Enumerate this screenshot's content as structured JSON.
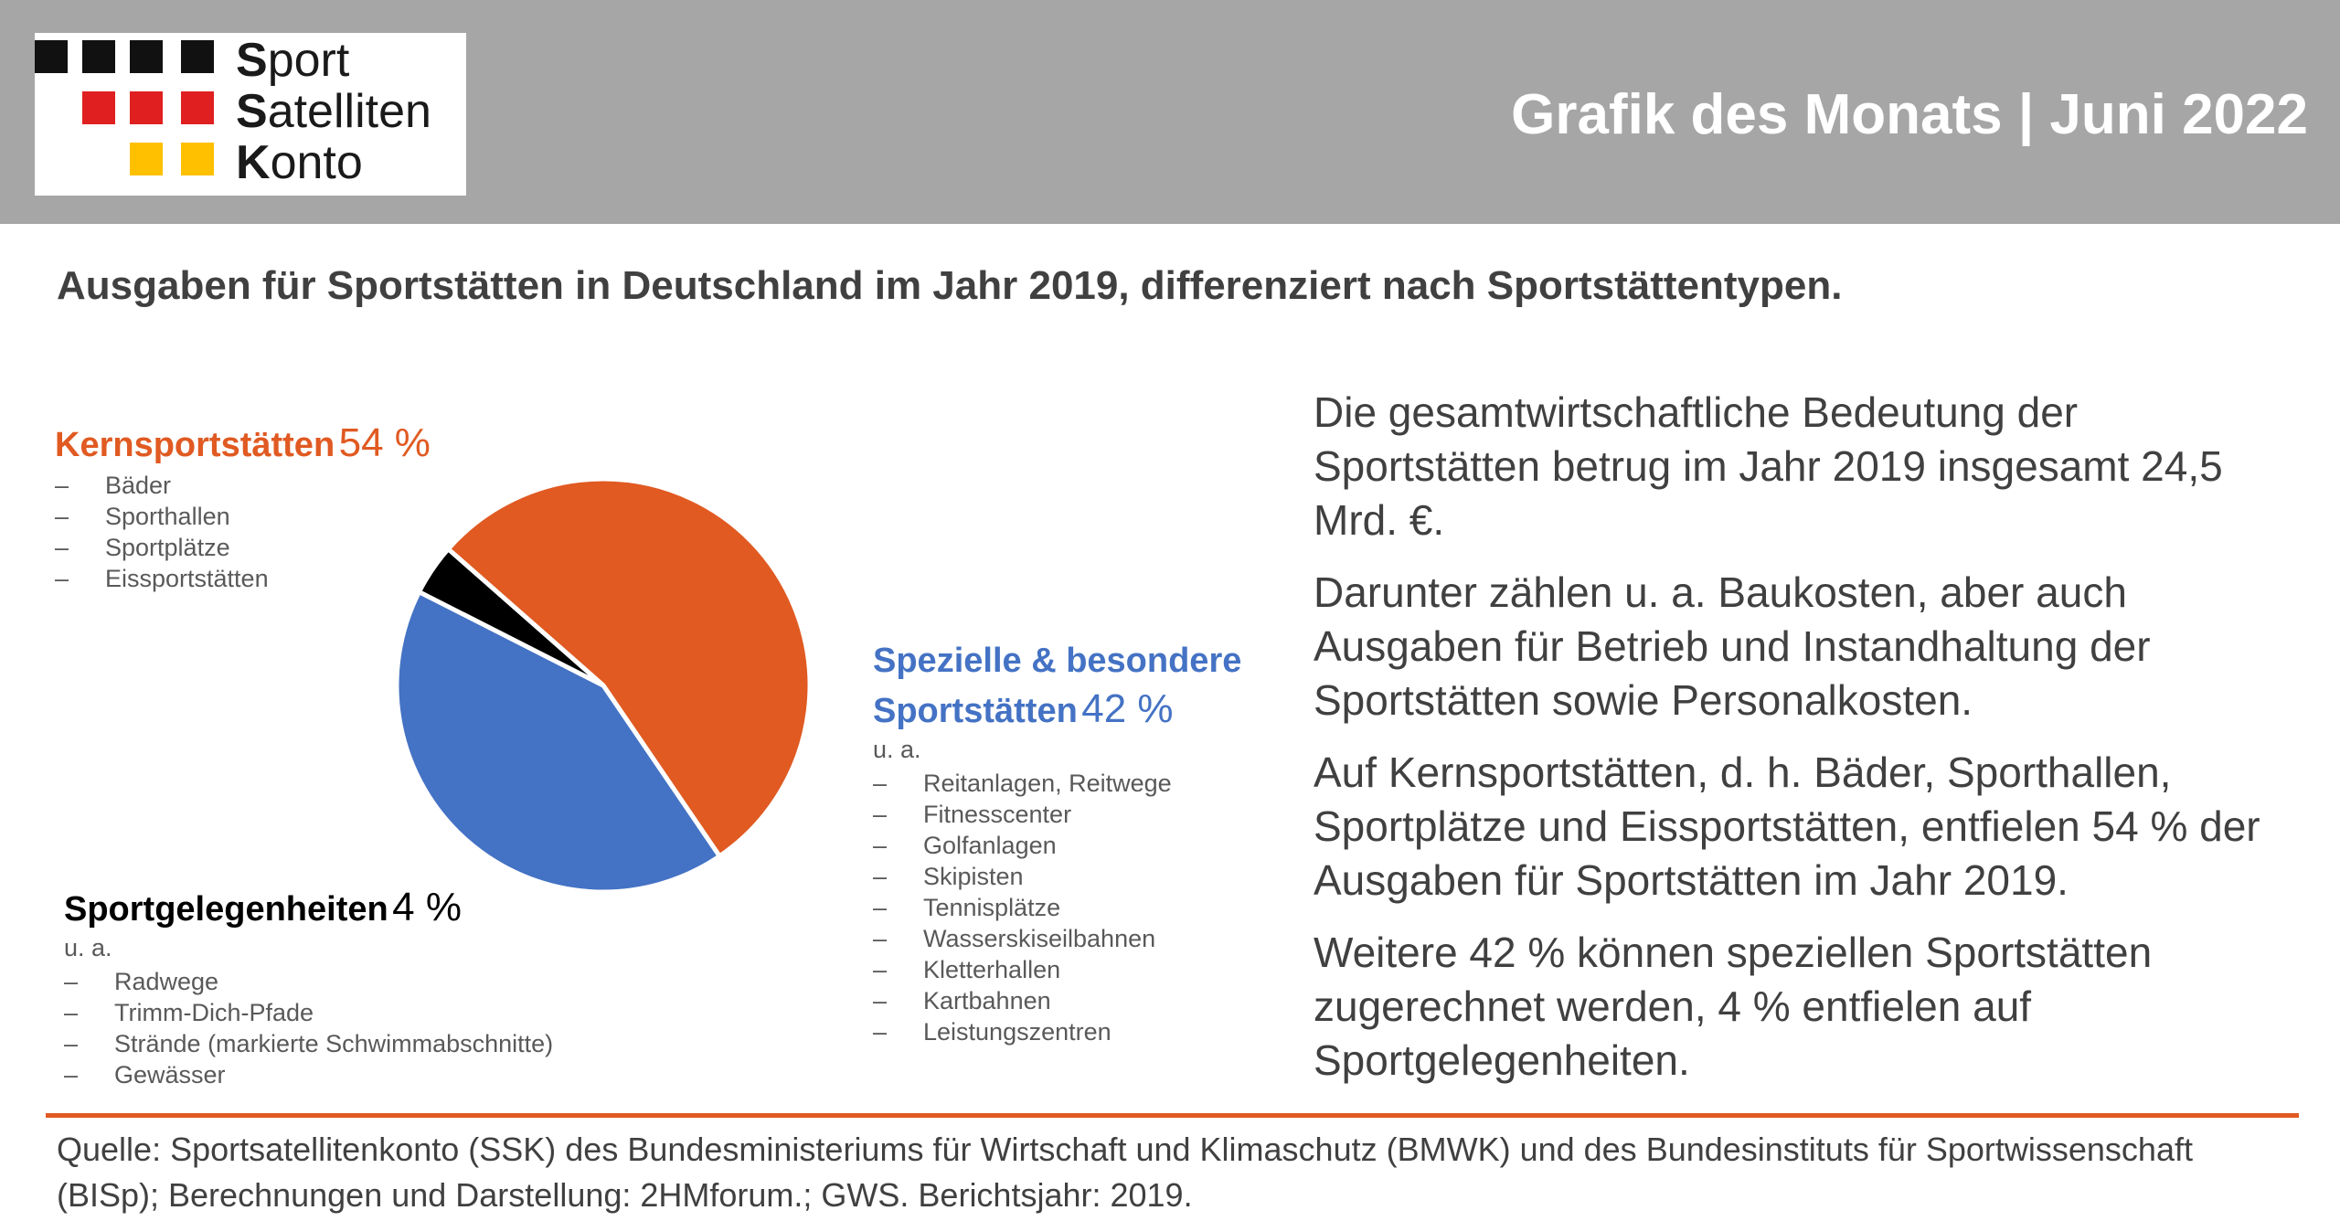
{
  "header": {
    "logo_words": [
      {
        "initial": "S",
        "rest": "port"
      },
      {
        "initial": "S",
        "rest": "atelliten"
      },
      {
        "initial": "K",
        "rest": "onto"
      }
    ],
    "logo_colors": {
      "row1": "#111111",
      "row2": "#e02020",
      "row3": "#ffc000"
    },
    "title": "Grafik des Monats | Juni 2022"
  },
  "subtitle": "Ausgaben für Sportstätten in Deutschland im Jahr 2019, differenziert nach Sportstättentypen.",
  "chart_data": {
    "type": "pie",
    "slices": [
      {
        "name": "Kernsportstätten",
        "value": 54,
        "color": "#e05a22"
      },
      {
        "name": "Spezielle & besondere Sportstätten",
        "value": 42,
        "color": "#4472c4"
      },
      {
        "name": "Sportgelegenheiten",
        "value": 4,
        "color": "#000000"
      }
    ],
    "unit": "%"
  },
  "labels": {
    "kern": {
      "title": "Kernsportstätten",
      "pct": "54 %",
      "items": [
        "Bäder",
        "Sporthallen",
        "Sportplätze",
        "Eissportstätten"
      ]
    },
    "spezial": {
      "title_line1": "Spezielle & besondere",
      "title_line2": "Sportstätten",
      "pct": "42 %",
      "ua": "u. a.",
      "items": [
        "Reitanlagen, Reitwege",
        "Fitnesscenter",
        "Golfanlagen",
        "Skipisten",
        "Tennisplätze",
        "Wasserskiseilbahnen",
        "Kletterhallen",
        "Kartbahnen",
        "Leistungszentren"
      ]
    },
    "gelegenheiten": {
      "title": "Sportgelegenheiten",
      "pct": "4 %",
      "ua": "u. a.",
      "items": [
        "Radwege",
        "Trimm-Dich-Pfade",
        "Strände (markierte Schwimmabschnitte)",
        "Gewässer"
      ]
    }
  },
  "body_paragraphs": [
    "Die gesamtwirtschaftliche Bedeutung der Sportstätten betrug im Jahr 2019 insgesamt 24,5 Mrd. €.",
    "Darunter zählen u. a. Baukosten, aber auch Ausgaben für Betrieb und Instandhaltung der Sportstätten sowie Personalkosten.",
    "Auf Kernsportstätten, d. h. Bäder, Sporthallen, Sportplätze und Eissportstätten, entfielen 54 % der Ausgaben für Sportstätten im Jahr 2019.",
    "Weitere 42 % können speziellen Sportstätten zugerechnet werden, 4 % entfielen auf Sportgelegenheiten."
  ],
  "source": "Quelle: Sportsatellitenkonto (SSK) des Bundesministeriums für Wirtschaft und Klimaschutz (BMWK) und des Bundesinstituts für Sportwissenschaft (BISp); Berechnungen und Darstellung: 2HMforum.; GWS. Berichtsjahr: 2019."
}
